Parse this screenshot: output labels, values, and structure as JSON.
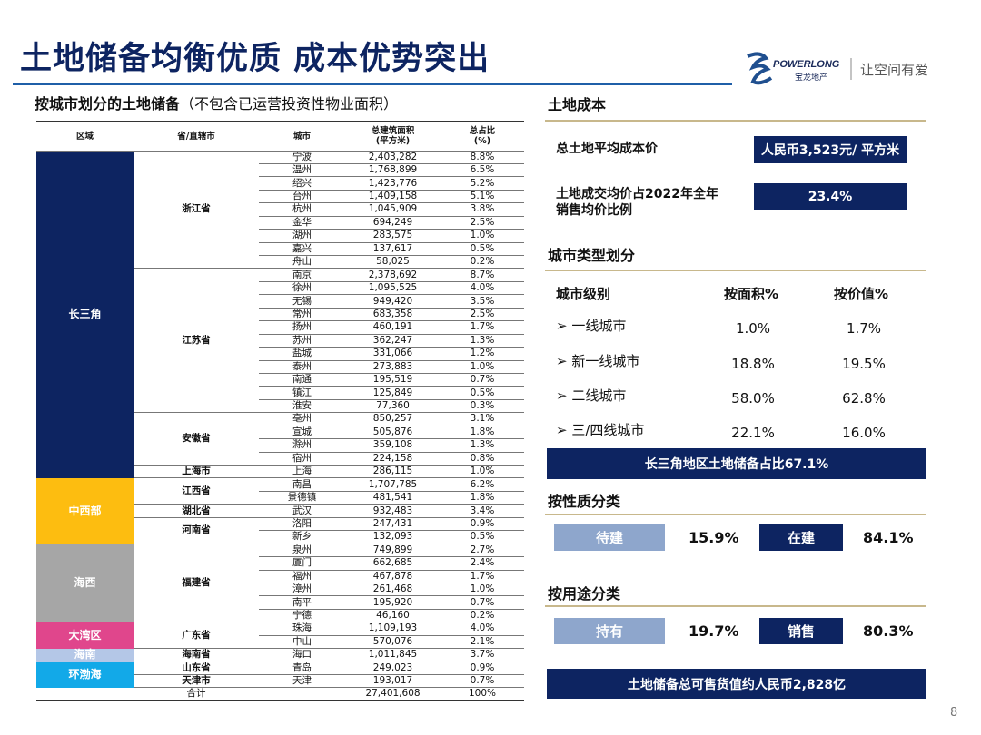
{
  "title": "土地储备均衡优质  成本优势突出",
  "logo": {
    "brand_en": "POWERLONG",
    "brand_cn": "宝龙地产",
    "slogan": "让空间有爱"
  },
  "subtitle": {
    "bold": "按城市划分的土地储备",
    "note": "（不包含已运营投资性物业面积）"
  },
  "table": {
    "headers": [
      "区域",
      "省/直辖市",
      "城市",
      "总建筑面积\n(平方米)",
      "总占比\n(%)"
    ],
    "regions": [
      {
        "name": "长三角",
        "color": "#0d2461",
        "provinces": [
          {
            "name": "浙江省",
            "cities": [
              [
                "宁波",
                "2,403,282",
                "8.8%"
              ],
              [
                "温州",
                "1,768,899",
                "6.5%"
              ],
              [
                "绍兴",
                "1,423,776",
                "5.2%"
              ],
              [
                "台州",
                "1,409,158",
                "5.1%"
              ],
              [
                "杭州",
                "1,045,909",
                "3.8%"
              ],
              [
                "金华",
                "694,249",
                "2.5%"
              ],
              [
                "湖州",
                "283,575",
                "1.0%"
              ],
              [
                "嘉兴",
                "137,617",
                "0.5%"
              ],
              [
                "舟山",
                "58,025",
                "0.2%"
              ]
            ]
          },
          {
            "name": "江苏省",
            "cities": [
              [
                "南京",
                "2,378,692",
                "8.7%"
              ],
              [
                "徐州",
                "1,095,525",
                "4.0%"
              ],
              [
                "无锡",
                "949,420",
                "3.5%"
              ],
              [
                "常州",
                "683,358",
                "2.5%"
              ],
              [
                "扬州",
                "460,191",
                "1.7%"
              ],
              [
                "苏州",
                "362,247",
                "1.3%"
              ],
              [
                "盐城",
                "331,066",
                "1.2%"
              ],
              [
                "泰州",
                "273,883",
                "1.0%"
              ],
              [
                "南通",
                "195,519",
                "0.7%"
              ],
              [
                "镇江",
                "125,849",
                "0.5%"
              ],
              [
                "淮安",
                "77,360",
                "0.3%"
              ]
            ]
          },
          {
            "name": "安徽省",
            "cities": [
              [
                "亳州",
                "850,257",
                "3.1%"
              ],
              [
                "宣城",
                "505,876",
                "1.8%"
              ],
              [
                "滁州",
                "359,108",
                "1.3%"
              ],
              [
                "宿州",
                "224,158",
                "0.8%"
              ]
            ]
          },
          {
            "name": "上海市",
            "cities": [
              [
                "上海",
                "286,115",
                "1.0%"
              ]
            ]
          }
        ]
      },
      {
        "name": "中西部",
        "color": "#fdbd10",
        "provinces": [
          {
            "name": "江西省",
            "cities": [
              [
                "南昌",
                "1,707,785",
                "6.2%"
              ],
              [
                "景德镇",
                "481,541",
                "1.8%"
              ]
            ]
          },
          {
            "name": "湖北省",
            "cities": [
              [
                "武汉",
                "932,483",
                "3.4%"
              ]
            ]
          },
          {
            "name": "河南省",
            "cities": [
              [
                "洛阳",
                "247,431",
                "0.9%"
              ],
              [
                "新乡",
                "132,093",
                "0.5%"
              ]
            ]
          }
        ]
      },
      {
        "name": "海西",
        "color": "#a6a6a6",
        "provinces": [
          {
            "name": "福建省",
            "cities": [
              [
                "泉州",
                "749,899",
                "2.7%"
              ],
              [
                "厦门",
                "662,685",
                "2.4%"
              ],
              [
                "福州",
                "467,878",
                "1.7%"
              ],
              [
                "漳州",
                "261,468",
                "1.0%"
              ],
              [
                "南平",
                "195,920",
                "0.7%"
              ],
              [
                "宁德",
                "46,160",
                "0.2%"
              ]
            ]
          }
        ]
      },
      {
        "name": "大湾区",
        "color": "#e0468c",
        "provinces": [
          {
            "name": "广东省",
            "cities": [
              [
                "珠海",
                "1,109,193",
                "4.0%"
              ],
              [
                "中山",
                "570,076",
                "2.1%"
              ]
            ]
          }
        ]
      },
      {
        "name": "海南",
        "color": "#b4c7e7",
        "provinces": [
          {
            "name": "海南省",
            "cities": [
              [
                "海口",
                "1,011,845",
                "3.7%"
              ]
            ]
          }
        ]
      },
      {
        "name": "环渤海",
        "color": "#12a9e8",
        "provinces": [
          {
            "name": "山东省",
            "cities": [
              [
                "青岛",
                "249,023",
                "0.9%"
              ]
            ]
          },
          {
            "name": "天津市",
            "cities": [
              [
                "天津",
                "193,017",
                "0.7%"
              ]
            ]
          }
        ]
      }
    ],
    "total": {
      "label": "合计",
      "area": "27,401,608",
      "pct": "100%"
    }
  },
  "land_cost": {
    "heading": "土地成本",
    "avg_label": "总土地平均成本价",
    "avg_value": "人民币3,523元/ 平方米",
    "ratio_label_1": "土地成交均价占2022年全年",
    "ratio_label_2": "销售均价比例",
    "ratio_value": "23.4%"
  },
  "city_type": {
    "heading": "城市类型划分",
    "col_level": "城市级别",
    "col_area": "按面积%",
    "col_value": "按价值%",
    "rows": [
      {
        "name": "一线城市",
        "area": "1.0%",
        "value": "1.7%"
      },
      {
        "name": "新一线城市",
        "area": "18.8%",
        "value": "19.5%"
      },
      {
        "name": "二线城市",
        "area": "58.0%",
        "value": "62.8%"
      },
      {
        "name": "三/四线城市",
        "area": "22.1%",
        "value": "16.0%"
      }
    ],
    "banner": "长三角地区土地储备占比67.1%"
  },
  "nature": {
    "heading": "按性质分类",
    "a_label": "待建",
    "a_value": "15.9%",
    "b_label": "在建",
    "b_value": "84.1%"
  },
  "usage": {
    "heading": "按用途分类",
    "a_label": "持有",
    "a_value": "19.7%",
    "b_label": "销售",
    "b_value": "80.3%"
  },
  "footer_banner": "土地储备总可售货值约人民币2,828亿",
  "page_number": "8",
  "colors": {
    "navy": "#0d2461",
    "light_blue": "#8ea6cc",
    "gold_line": "#c8b88c"
  }
}
